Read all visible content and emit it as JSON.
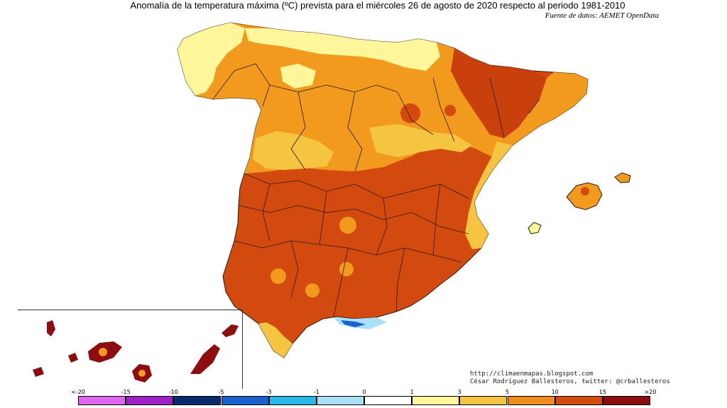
{
  "title": "Anomalía de la temperatura máxima (ºC) prevista para el miércoles 26 de agosto de 2020 respecto al periodo 1981-2010",
  "source": "Fuente de datos: AEMET OpenData",
  "credits": {
    "blog": "http://climaenmapas.blogspot.com",
    "author": "César Rodríguez Ballesteros, twitter: @crballesteros"
  },
  "legend": {
    "labels": [
      "<-20",
      "-15",
      "-10",
      "-5",
      "-3",
      "-1",
      "0",
      "1",
      "3",
      "5",
      "10",
      "15",
      ">20"
    ],
    "colors": [
      "#e066f0",
      "#a020c8",
      "#0a2a6e",
      "#1a60d0",
      "#28b8e8",
      "#a8e0f5",
      "#ffffff",
      "#fff79a",
      "#f5c542",
      "#f08c1c",
      "#d44c0c",
      "#8c0c10",
      "#6a3a08"
    ]
  },
  "palette": {
    "light_yellow": "#fff79a",
    "yellow": "#f5c542",
    "orange": "#f29a1e",
    "red_orange": "#d24a0e",
    "dark_red": "#8c0c10",
    "light_blue": "#a8e0f5",
    "blue": "#1a60d0"
  }
}
